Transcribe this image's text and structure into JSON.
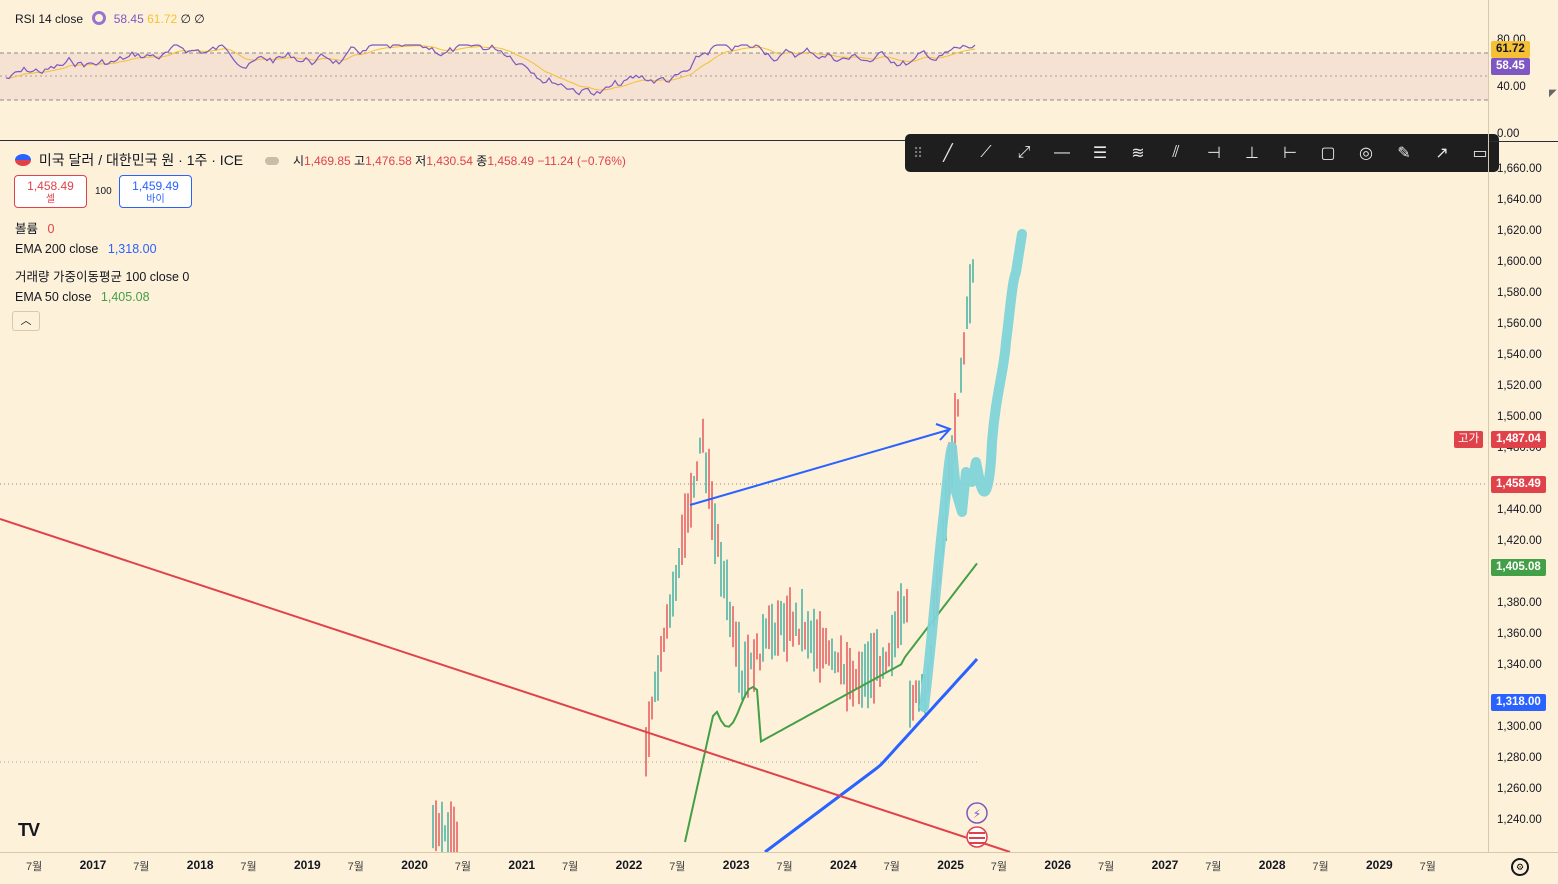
{
  "rsi_legend": {
    "label": "RSI 14 close",
    "value1": "58.45",
    "value2": "61.72",
    "extra": "∅ ∅"
  },
  "rsi_axis": {
    "ticks": [
      "80.00",
      "40.00",
      "0.00"
    ],
    "tag_yellow": "61.72",
    "tag_purple": "58.45"
  },
  "symbol": {
    "title": "미국 달러 / 대한민국 원 · 1주 · ICE",
    "o_label": "시",
    "o": "1,469.85",
    "h_label": "고",
    "h": "1,476.58",
    "l_label": "저",
    "l": "1,430.54",
    "c_label": "종",
    "c": "1,458.49",
    "change": "−11.24 (−0.76%)"
  },
  "trade": {
    "sell_price": "1,458.49",
    "sell_label": "셀",
    "spread": "100",
    "buy_price": "1,459.49",
    "buy_label": "바이"
  },
  "indicators": {
    "volume_label": "볼륨",
    "volume_value": "0",
    "ema200_label": "EMA 200 close",
    "ema200_value": "1,318.00",
    "vwma_label": "거래량 가중이동평균 100 close 0",
    "ema50_label": "EMA 50 close",
    "ema50_value": "1,405.08"
  },
  "price_axis": {
    "ticks": [
      "1,660.00",
      "1,640.00",
      "1,620.00",
      "1,600.00",
      "1,580.00",
      "1,560.00",
      "1,540.00",
      "1,520.00",
      "1,500.00",
      "1,480.00",
      "1,440.00",
      "1,420.00",
      "1,380.00",
      "1,360.00",
      "1,340.00",
      "1,300.00",
      "1,280.00",
      "1,260.00",
      "1,240.00"
    ],
    "high_label": "고가",
    "high_value": "1,487.04",
    "last_value": "1,458.49",
    "ema50_tag": "1,405.08",
    "ema200_tag": "1,318.00"
  },
  "time_axis": {
    "labels": [
      "7월",
      "2017",
      "7월",
      "2018",
      "7월",
      "2019",
      "7월",
      "2020",
      "7월",
      "2021",
      "7월",
      "2022",
      "7월",
      "2023",
      "7월",
      "2024",
      "7월",
      "2025",
      "7월",
      "2026",
      "7월",
      "2027",
      "7월",
      "2028",
      "7월",
      "2029",
      "7월"
    ]
  },
  "toolbar": {
    "tools": [
      "trend-line-icon",
      "ray-icon",
      "extended-line-icon",
      "horizontal-line-icon",
      "parallel-channel-icon",
      "regression-icon",
      "pitchfork-icon",
      "brush-tree-icon",
      "vertical-measure-icon",
      "horizontal-measure-icon",
      "rectangle-icon",
      "circle-icon",
      "brush-icon",
      "arrow-icon",
      "comment-icon"
    ]
  },
  "colors": {
    "background": "#fef1d9",
    "ema200": "#2962ff",
    "ema50": "#43a047",
    "trendline": "#e0424a",
    "arrow": "#2962ff",
    "highlight": "#7fd3d8",
    "rsi": "#7e57c2",
    "rsi_ma": "#f5c035"
  },
  "logo": "TV"
}
